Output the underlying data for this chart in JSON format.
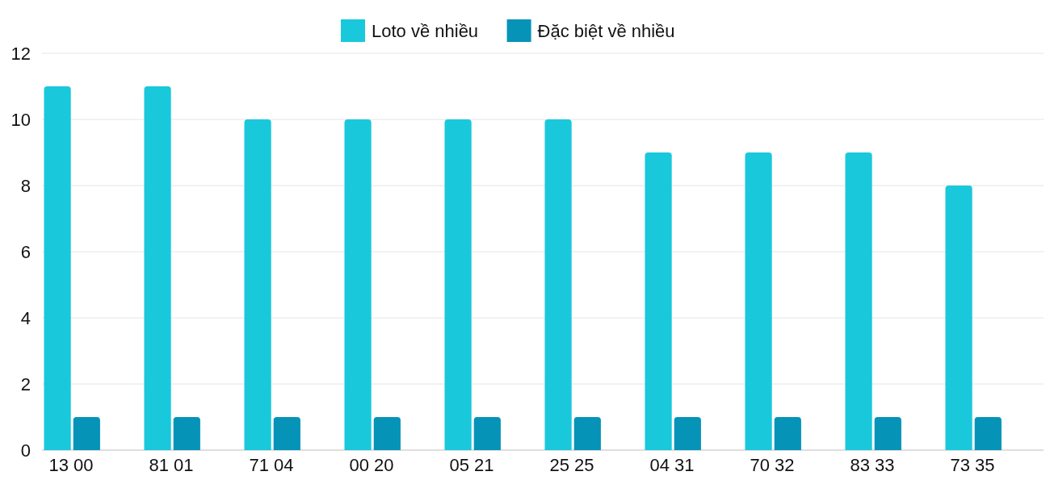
{
  "chart_data": {
    "type": "bar",
    "categories": [
      "13 00",
      "81 01",
      "71 04",
      "00 20",
      "05 21",
      "25 25",
      "04 31",
      "70 32",
      "83 33",
      "73 35"
    ],
    "series": [
      {
        "name": "Loto về nhiều",
        "color": "#1ac8db",
        "values": [
          11,
          11,
          10,
          10,
          10,
          10,
          9,
          9,
          9,
          8
        ]
      },
      {
        "name": "Đặc biệt về nhiều",
        "color": "#0693b8",
        "values": [
          1,
          1,
          1,
          1,
          1,
          1,
          1,
          1,
          1,
          1
        ]
      }
    ],
    "ylim": [
      0,
      12
    ],
    "yticks": [
      0,
      2,
      4,
      6,
      8,
      10,
      12
    ],
    "grid": "y",
    "legend": "top"
  }
}
